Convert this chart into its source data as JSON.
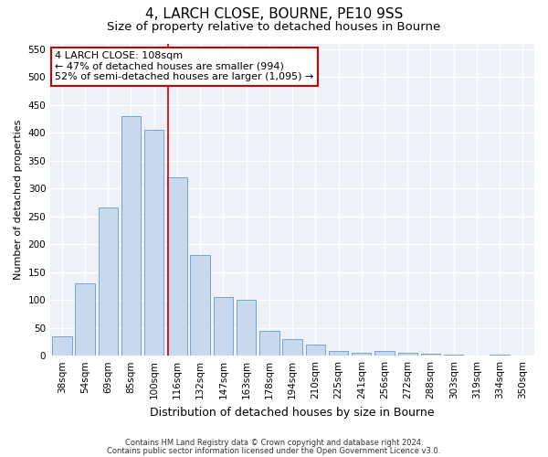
{
  "title": "4, LARCH CLOSE, BOURNE, PE10 9SS",
  "subtitle": "Size of property relative to detached houses in Bourne",
  "xlabel": "Distribution of detached houses by size in Bourne",
  "ylabel": "Number of detached properties",
  "categories": [
    "38sqm",
    "54sqm",
    "69sqm",
    "85sqm",
    "100sqm",
    "116sqm",
    "132sqm",
    "147sqm",
    "163sqm",
    "178sqm",
    "194sqm",
    "210sqm",
    "225sqm",
    "241sqm",
    "256sqm",
    "272sqm",
    "288sqm",
    "303sqm",
    "319sqm",
    "334sqm",
    "350sqm"
  ],
  "values": [
    35,
    130,
    265,
    430,
    405,
    320,
    180,
    105,
    100,
    45,
    30,
    20,
    8,
    5,
    8,
    5,
    3,
    2,
    1,
    2,
    1
  ],
  "bar_color": "#c8d9ed",
  "bar_edge_color": "#6699cc",
  "bar_width": 0.85,
  "vline_x": 4.62,
  "vline_color": "#cc0000",
  "ylim": [
    0,
    560
  ],
  "yticks": [
    0,
    50,
    100,
    150,
    200,
    250,
    300,
    350,
    400,
    450,
    500,
    550
  ],
  "annotation_text": "4 LARCH CLOSE: 108sqm\n← 47% of detached houses are smaller (994)\n52% of semi-detached houses are larger (1,095) →",
  "annotation_box_color": "#ffffff",
  "annotation_box_edge": "#cc0000",
  "bg_color": "#eef2f8",
  "grid_color": "#ffffff",
  "footer_line1": "Contains HM Land Registry data © Crown copyright and database right 2024.",
  "footer_line2": "Contains public sector information licensed under the Open Government Licence v3.0.",
  "title_fontsize": 11,
  "subtitle_fontsize": 9.5,
  "xlabel_fontsize": 9,
  "ylabel_fontsize": 8,
  "tick_fontsize": 7.5,
  "annot_fontsize": 8
}
